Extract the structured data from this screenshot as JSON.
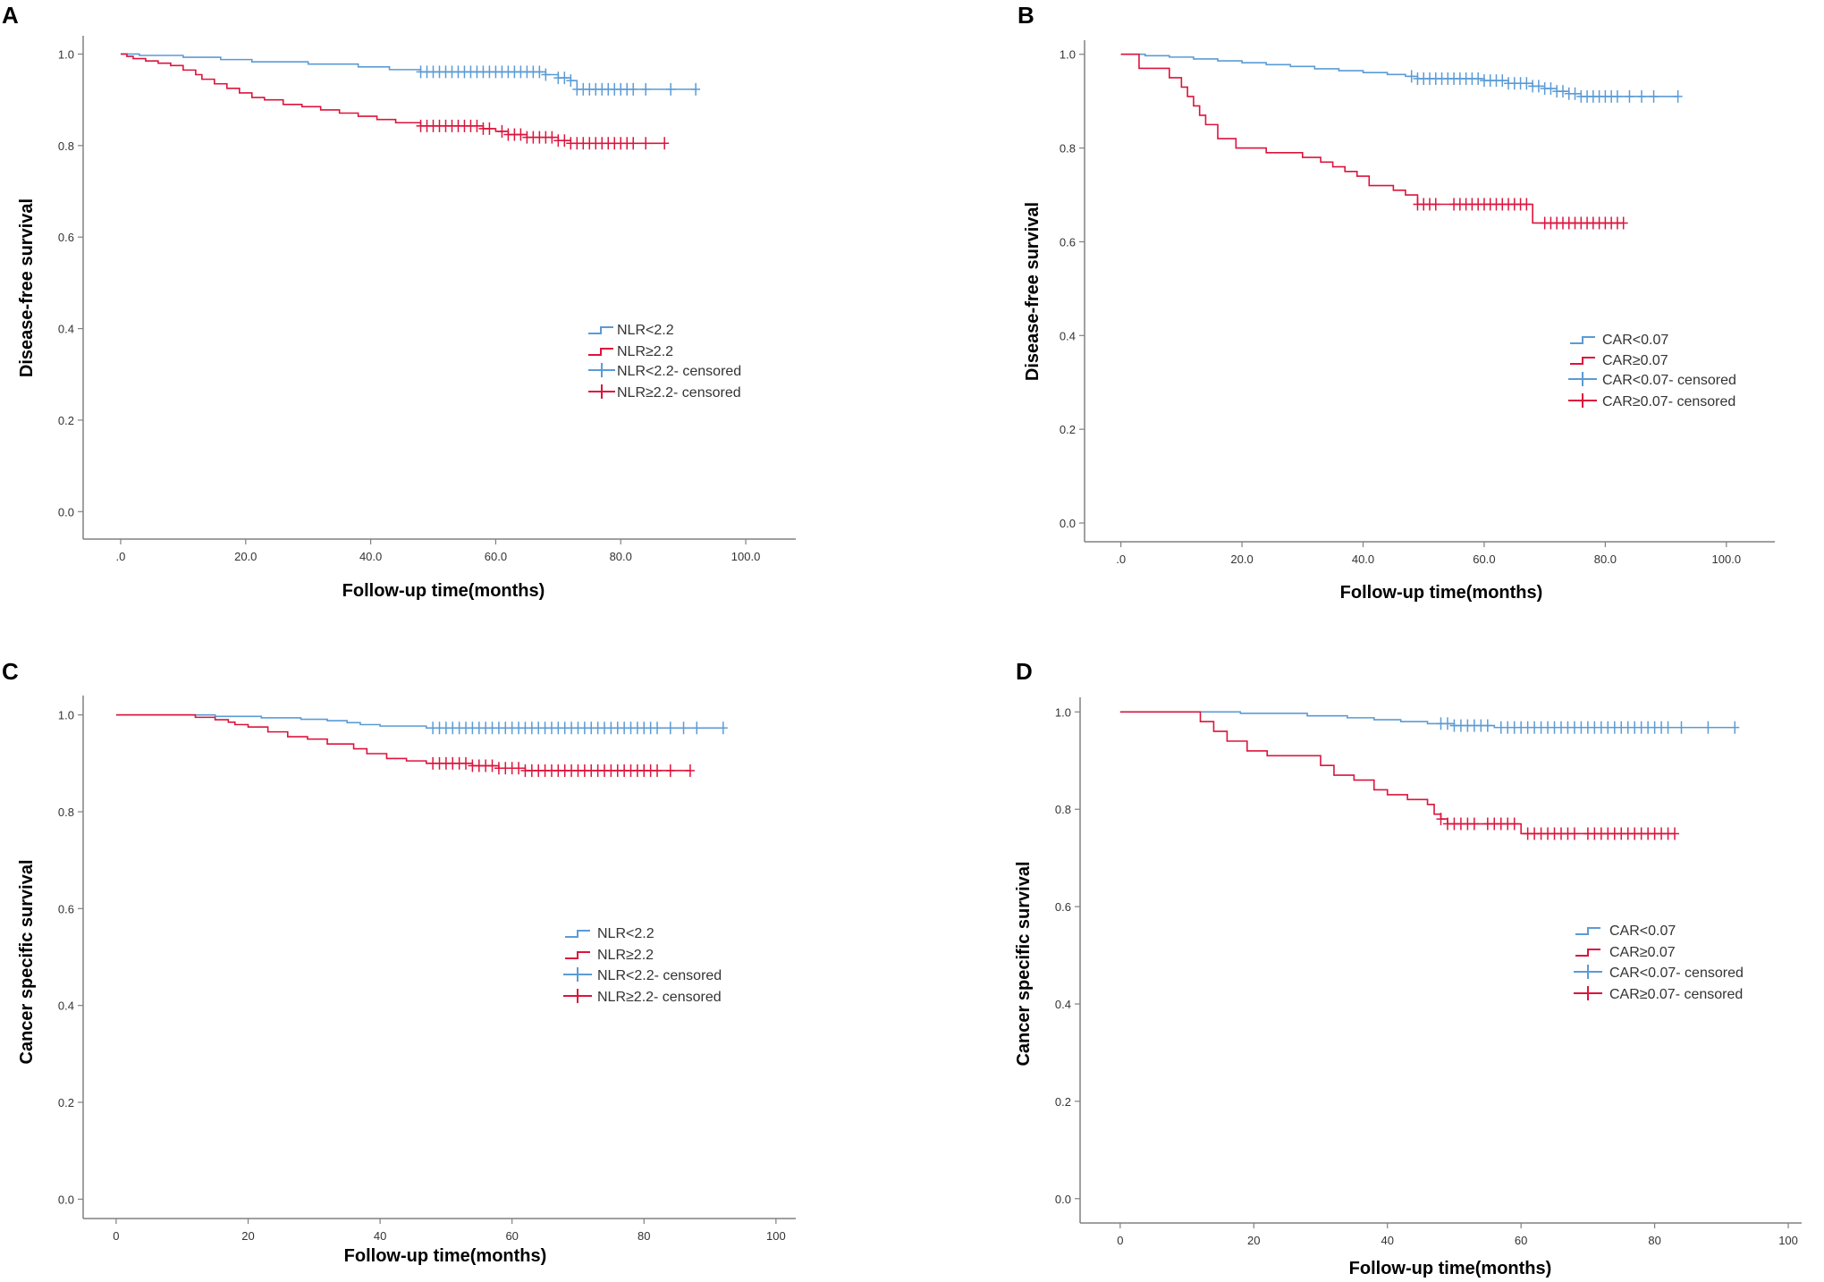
{
  "colors": {
    "low": "#5b9bd5",
    "high": "#dc143c",
    "axis": "#808080"
  },
  "chart_data": [
    {
      "panel": "A",
      "type": "line",
      "subtype": "kaplan-meier",
      "ylabel": "Disease-free survival",
      "xlabel": "Follow-up time(months)",
      "xlim": [
        -6,
        108
      ],
      "ylim": [
        -0.06,
        1.04
      ],
      "xticks": [
        0,
        20,
        40,
        60,
        80,
        100
      ],
      "xtick_labels": [
        ".0",
        "20.0",
        "40.0",
        "60.0",
        "80.0",
        "100.0"
      ],
      "yticks": [
        0,
        0.2,
        0.4,
        0.6,
        0.8,
        1.0
      ],
      "ytick_labels": [
        "0.0",
        "0.2",
        "0.4",
        "0.6",
        "0.8",
        "1.0"
      ],
      "legend_position": "center-right",
      "legend": [
        "NLR<2.2",
        "NLR≥2.2",
        "NLR<2.2- censored",
        "NLR≥2.2- censored"
      ],
      "series": [
        {
          "name": "NLR<2.2",
          "color": "low",
          "steps": [
            [
              0,
              1.0
            ],
            [
              3,
              0.997
            ],
            [
              10,
              0.993
            ],
            [
              16,
              0.988
            ],
            [
              21,
              0.983
            ],
            [
              30,
              0.978
            ],
            [
              38,
              0.972
            ],
            [
              43,
              0.966
            ],
            [
              48,
              0.961
            ],
            [
              68,
              0.955
            ],
            [
              70,
              0.948
            ],
            [
              72,
              0.942
            ],
            [
              73,
              0.923
            ]
          ],
          "end": 92,
          "censored": [
            48,
            49,
            50,
            51,
            52,
            53,
            54,
            55,
            56,
            57,
            58,
            59,
            60,
            61,
            62,
            63,
            64,
            65,
            66,
            67,
            68,
            70,
            71,
            72,
            73,
            74,
            75,
            76,
            77,
            78,
            79,
            80,
            81,
            82,
            84,
            88,
            92
          ]
        },
        {
          "name": "NLR≥2.2",
          "color": "high",
          "steps": [
            [
              0,
              1.0
            ],
            [
              1,
              0.995
            ],
            [
              2,
              0.99
            ],
            [
              4,
              0.985
            ],
            [
              6,
              0.98
            ],
            [
              8,
              0.975
            ],
            [
              10,
              0.965
            ],
            [
              12,
              0.955
            ],
            [
              13,
              0.945
            ],
            [
              15,
              0.935
            ],
            [
              17,
              0.925
            ],
            [
              19,
              0.915
            ],
            [
              21,
              0.905
            ],
            [
              23,
              0.9
            ],
            [
              26,
              0.89
            ],
            [
              29,
              0.885
            ],
            [
              32,
              0.878
            ],
            [
              35,
              0.871
            ],
            [
              38,
              0.864
            ],
            [
              41,
              0.857
            ],
            [
              44,
              0.85
            ],
            [
              48,
              0.843
            ],
            [
              58,
              0.837
            ],
            [
              60,
              0.831
            ],
            [
              62,
              0.824
            ],
            [
              65,
              0.818
            ],
            [
              70,
              0.811
            ],
            [
              72,
              0.805
            ]
          ],
          "end": 87,
          "censored": [
            48,
            49,
            50,
            51,
            52,
            53,
            54,
            55,
            56,
            57,
            58,
            59,
            61,
            62,
            63,
            64,
            65,
            66,
            67,
            68,
            69,
            70,
            71,
            72,
            73,
            74,
            75,
            76,
            77,
            78,
            79,
            80,
            81,
            82,
            84,
            87
          ]
        }
      ]
    },
    {
      "panel": "B",
      "type": "line",
      "subtype": "kaplan-meier",
      "ylabel": "Disease-free survival",
      "xlabel": "Follow-up time(months)",
      "xlim": [
        -6,
        108
      ],
      "ylim": [
        -0.04,
        1.03
      ],
      "xticks": [
        0,
        20,
        40,
        60,
        80,
        100
      ],
      "xtick_labels": [
        ".0",
        "20.0",
        "40.0",
        "60.0",
        "80.0",
        "100.0"
      ],
      "yticks": [
        0,
        0.2,
        0.4,
        0.6,
        0.8,
        1.0
      ],
      "ytick_labels": [
        "0.0",
        "0.2",
        "0.4",
        "0.6",
        "0.8",
        "1.0"
      ],
      "legend_position": "center-right",
      "legend": [
        "CAR<0.07",
        "CAR≥0.07",
        "CAR<0.07- censored",
        "CAR≥0.07- censored"
      ],
      "series": [
        {
          "name": "CAR<0.07",
          "color": "low",
          "steps": [
            [
              0,
              1.0
            ],
            [
              4,
              0.997
            ],
            [
              8,
              0.994
            ],
            [
              12,
              0.99
            ],
            [
              16,
              0.986
            ],
            [
              20,
              0.982
            ],
            [
              24,
              0.978
            ],
            [
              28,
              0.974
            ],
            [
              32,
              0.969
            ],
            [
              36,
              0.965
            ],
            [
              40,
              0.961
            ],
            [
              44,
              0.957
            ],
            [
              47,
              0.953
            ],
            [
              49,
              0.948
            ],
            [
              60,
              0.944
            ],
            [
              64,
              0.938
            ],
            [
              68,
              0.932
            ],
            [
              70,
              0.927
            ],
            [
              72,
              0.921
            ],
            [
              74,
              0.916
            ],
            [
              76,
              0.91
            ]
          ],
          "end": 92,
          "censored": [
            48,
            49,
            50,
            51,
            52,
            53,
            54,
            55,
            56,
            57,
            58,
            59,
            60,
            61,
            62,
            63,
            64,
            65,
            66,
            67,
            68,
            69,
            70,
            71,
            72,
            73,
            74,
            75,
            76,
            77,
            78,
            79,
            80,
            81,
            82,
            84,
            86,
            88,
            92
          ]
        },
        {
          "name": "CAR≥0.07",
          "color": "high",
          "steps": [
            [
              0,
              1.0
            ],
            [
              3,
              0.97
            ],
            [
              8,
              0.95
            ],
            [
              10,
              0.93
            ],
            [
              11,
              0.91
            ],
            [
              12,
              0.89
            ],
            [
              13,
              0.87
            ],
            [
              14,
              0.85
            ],
            [
              16,
              0.82
            ],
            [
              19,
              0.8
            ],
            [
              24,
              0.79
            ],
            [
              30,
              0.78
            ],
            [
              33,
              0.77
            ],
            [
              35,
              0.76
            ],
            [
              37,
              0.75
            ],
            [
              39,
              0.74
            ],
            [
              41,
              0.72
            ],
            [
              45,
              0.71
            ],
            [
              47,
              0.7
            ],
            [
              49,
              0.68
            ],
            [
              68,
              0.64
            ]
          ],
          "end": 83,
          "censored": [
            49,
            50,
            51,
            52,
            55,
            56,
            57,
            58,
            59,
            60,
            61,
            62,
            63,
            64,
            65,
            66,
            67,
            70,
            71,
            72,
            73,
            74,
            75,
            76,
            77,
            78,
            79,
            80,
            81,
            82,
            83
          ]
        }
      ]
    },
    {
      "panel": "C",
      "type": "line",
      "subtype": "kaplan-meier",
      "ylabel": "Cancer specific survival",
      "xlabel": "Follow-up time(months)",
      "xlim": [
        -5,
        103
      ],
      "ylim": [
        -0.04,
        1.04
      ],
      "xticks": [
        0,
        20,
        40,
        60,
        80,
        100
      ],
      "xtick_labels": [
        "0",
        "20",
        "40",
        "60",
        "80",
        "100"
      ],
      "yticks": [
        0,
        0.2,
        0.4,
        0.6,
        0.8,
        1.0
      ],
      "ytick_labels": [
        "0.0",
        "0.2",
        "0.4",
        "0.6",
        "0.8",
        "1.0"
      ],
      "legend_position": "center-right",
      "legend": [
        "NLR<2.2",
        "NLR≥2.2",
        "NLR<2.2- censored",
        "NLR≥2.2- censored"
      ],
      "series": [
        {
          "name": "NLR<2.2",
          "color": "low",
          "steps": [
            [
              0,
              1.0
            ],
            [
              15,
              0.997
            ],
            [
              22,
              0.994
            ],
            [
              28,
              0.991
            ],
            [
              32,
              0.988
            ],
            [
              35,
              0.984
            ],
            [
              37,
              0.98
            ],
            [
              40,
              0.977
            ],
            [
              47,
              0.973
            ]
          ],
          "end": 92,
          "censored": [
            48,
            49,
            50,
            51,
            52,
            53,
            54,
            55,
            56,
            57,
            58,
            59,
            60,
            61,
            62,
            63,
            64,
            65,
            66,
            67,
            68,
            69,
            70,
            71,
            72,
            73,
            74,
            75,
            76,
            77,
            78,
            79,
            80,
            81,
            82,
            84,
            86,
            88,
            92
          ]
        },
        {
          "name": "NLR≥2.2",
          "color": "high",
          "steps": [
            [
              0,
              1.0
            ],
            [
              12,
              0.995
            ],
            [
              15,
              0.99
            ],
            [
              17,
              0.985
            ],
            [
              18,
              0.98
            ],
            [
              20,
              0.975
            ],
            [
              23,
              0.965
            ],
            [
              26,
              0.955
            ],
            [
              29,
              0.95
            ],
            [
              32,
              0.94
            ],
            [
              36,
              0.93
            ],
            [
              38,
              0.92
            ],
            [
              41,
              0.91
            ],
            [
              44,
              0.905
            ],
            [
              47,
              0.9
            ],
            [
              54,
              0.895
            ],
            [
              58,
              0.89
            ],
            [
              62,
              0.885
            ]
          ],
          "end": 87,
          "censored": [
            48,
            49,
            50,
            51,
            52,
            53,
            54,
            55,
            56,
            57,
            58,
            59,
            60,
            61,
            62,
            63,
            64,
            65,
            66,
            67,
            68,
            69,
            70,
            71,
            72,
            73,
            74,
            75,
            76,
            77,
            78,
            79,
            80,
            81,
            82,
            84,
            87
          ]
        }
      ]
    },
    {
      "panel": "D",
      "type": "line",
      "subtype": "kaplan-meier",
      "ylabel": "Cancer specific survival",
      "xlabel": "Follow-up time(months)",
      "xlim": [
        -6,
        102
      ],
      "ylim": [
        -0.05,
        1.03
      ],
      "xticks": [
        0,
        20,
        40,
        60,
        80,
        100
      ],
      "xtick_labels": [
        "0",
        "20",
        "40",
        "60",
        "80",
        "100"
      ],
      "yticks": [
        0,
        0.2,
        0.4,
        0.6,
        0.8,
        1.0
      ],
      "ytick_labels": [
        "0.0",
        "0.2",
        "0.4",
        "0.6",
        "0.8",
        "1.0"
      ],
      "legend_position": "center-right",
      "legend": [
        "CAR<0.07",
        "CAR≥0.07",
        "CAR<0.07- censored",
        "CAR≥0.07- censored"
      ],
      "series": [
        {
          "name": "CAR<0.07",
          "color": "low",
          "steps": [
            [
              0,
              1.0
            ],
            [
              18,
              0.997
            ],
            [
              28,
              0.992
            ],
            [
              34,
              0.988
            ],
            [
              38,
              0.984
            ],
            [
              42,
              0.98
            ],
            [
              46,
              0.976
            ],
            [
              50,
              0.972
            ],
            [
              56,
              0.968
            ]
          ],
          "end": 92,
          "censored": [
            48,
            49,
            50,
            51,
            52,
            53,
            54,
            55,
            57,
            58,
            59,
            60,
            61,
            62,
            63,
            64,
            65,
            66,
            67,
            68,
            69,
            70,
            71,
            72,
            73,
            74,
            75,
            76,
            77,
            78,
            79,
            80,
            81,
            82,
            84,
            88,
            92
          ]
        },
        {
          "name": "CAR≥0.07",
          "color": "high",
          "steps": [
            [
              0,
              1.0
            ],
            [
              12,
              0.98
            ],
            [
              14,
              0.96
            ],
            [
              16,
              0.94
            ],
            [
              19,
              0.92
            ],
            [
              22,
              0.91
            ],
            [
              30,
              0.89
            ],
            [
              32,
              0.87
            ],
            [
              35,
              0.86
            ],
            [
              38,
              0.84
            ],
            [
              40,
              0.83
            ],
            [
              43,
              0.82
            ],
            [
              46,
              0.81
            ],
            [
              47,
              0.79
            ],
            [
              48,
              0.78
            ],
            [
              49,
              0.77
            ],
            [
              60,
              0.75
            ]
          ],
          "end": 83,
          "censored": [
            48,
            49,
            50,
            51,
            52,
            53,
            55,
            56,
            57,
            58,
            59,
            61,
            62,
            63,
            64,
            65,
            66,
            67,
            68,
            70,
            71,
            72,
            73,
            74,
            75,
            76,
            77,
            78,
            79,
            80,
            81,
            82,
            83
          ]
        }
      ]
    }
  ]
}
